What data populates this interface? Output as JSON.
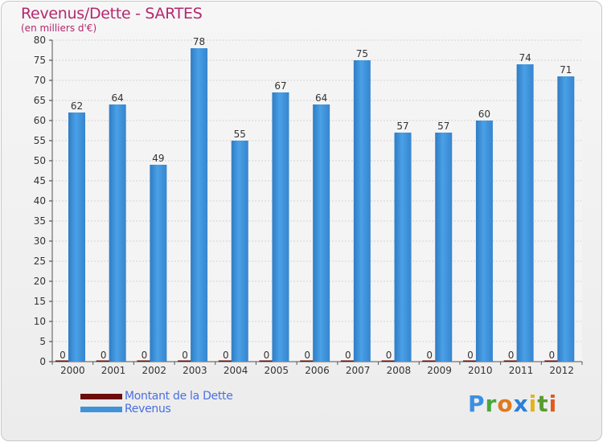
{
  "chart_data": {
    "type": "bar",
    "title": "Revenus/Dette - SARTES",
    "subtitle": "(en milliers d'€)",
    "categories": [
      "2000",
      "2001",
      "2002",
      "2003",
      "2004",
      "2005",
      "2006",
      "2007",
      "2008",
      "2009",
      "2010",
      "2011",
      "2012"
    ],
    "series": [
      {
        "name": "Montant de la Dette",
        "color": "#6b0d0d",
        "values": [
          0,
          0,
          0,
          0,
          0,
          0,
          0,
          0,
          0,
          0,
          0,
          0,
          0
        ]
      },
      {
        "name": "Revenus",
        "color": "#3f93d8",
        "values": [
          62,
          64,
          49,
          78,
          55,
          67,
          64,
          75,
          57,
          57,
          60,
          74,
          71
        ]
      }
    ],
    "ylim": [
      0,
      80
    ],
    "yticks": [
      0,
      5,
      10,
      15,
      20,
      25,
      30,
      35,
      40,
      45,
      50,
      55,
      60,
      65,
      70,
      75,
      80
    ],
    "grid": true,
    "legend_position": "bottom-left"
  },
  "logo": {
    "letters": [
      "P",
      "r",
      "o",
      "x",
      "i",
      "t",
      "i"
    ],
    "colors": [
      "#3c8fe0",
      "#4aa83c",
      "#e07a1e",
      "#2b7fd6",
      "#e0b41e",
      "#5a9c2e",
      "#e05a1e"
    ]
  }
}
